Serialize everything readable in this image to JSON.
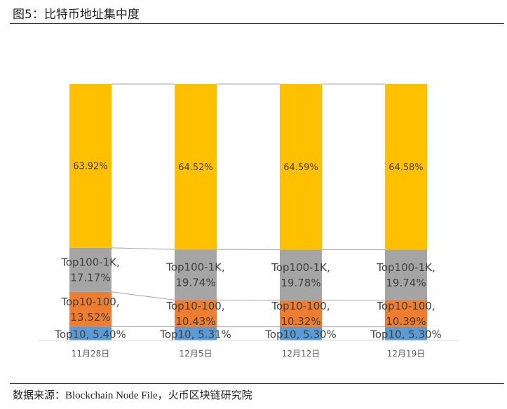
{
  "figure": {
    "title": "图5：比特币地址集中度",
    "source": "数据来源：Blockchain Node File，火币区块链研究院"
  },
  "chart_data": {
    "type": "bar",
    "stacked": true,
    "normalized": true,
    "categories": [
      "11月28日",
      "12月5日",
      "12月12日",
      "12月19日"
    ],
    "series": [
      {
        "name": "Top10",
        "color": "#5b9bd5",
        "values": [
          5.4,
          5.31,
          5.3,
          5.3
        ],
        "labels": [
          "Top10, 5.40%",
          "Top10, 5.31%",
          "Top10, 5.30%",
          "Top10, 5.30%"
        ]
      },
      {
        "name": "Top10-100",
        "color": "#ed7d31",
        "values": [
          13.52,
          10.43,
          10.32,
          10.39
        ],
        "labels": [
          "Top10-100,|13.52%",
          "Top10-100,|10.43%",
          "Top10-100,|10.32%",
          "Top10-100,|10.39%"
        ]
      },
      {
        "name": "Top100-1K",
        "color": "#a5a5a5",
        "values": [
          17.17,
          19.74,
          19.78,
          19.74
        ],
        "labels": [
          "Top100-1K,|17.17%",
          "Top100-1K,|19.74%",
          "Top100-1K,|19.78%",
          "Top100-1K,|19.74%"
        ]
      },
      {
        "name": "",
        "color": "#ffc000",
        "values": [
          63.92,
          64.52,
          64.59,
          64.58
        ],
        "labels": [
          "63.92%",
          "64.52%",
          "64.59%",
          "64.58%"
        ]
      }
    ],
    "axis_color": "#d9d9d9",
    "connector_color": "#a6a6a6"
  }
}
